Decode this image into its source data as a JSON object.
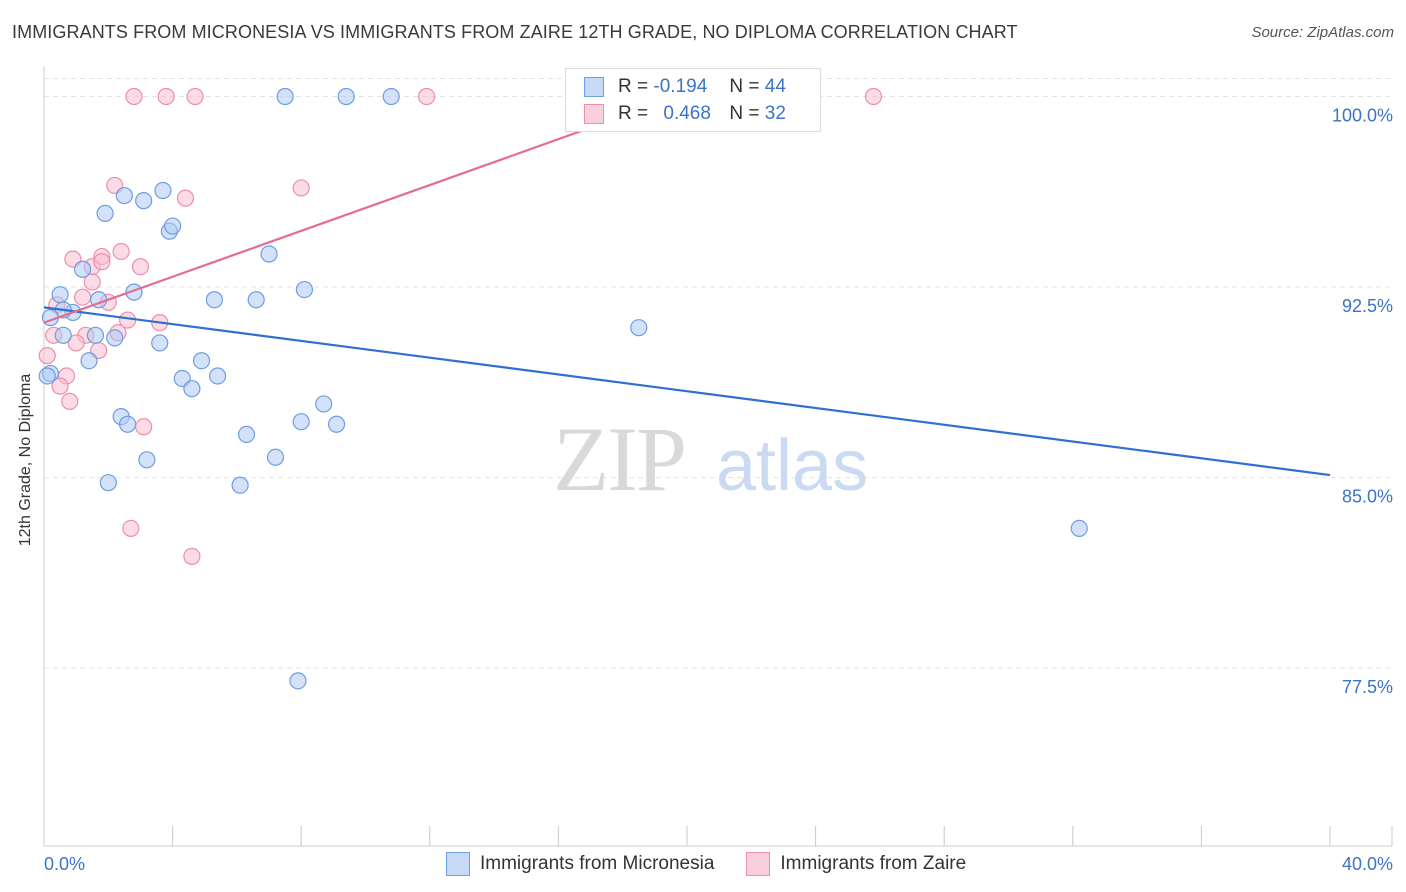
{
  "title": "IMMIGRANTS FROM MICRONESIA VS IMMIGRANTS FROM ZAIRE 12TH GRADE, NO DIPLOMA CORRELATION CHART",
  "source": "Source: ZipAtlas.com",
  "watermark": {
    "zip": "ZIP",
    "atlas": "atlas"
  },
  "colors": {
    "blue_fill": "#aecbf2",
    "blue_stroke": "#6f9de0",
    "blue_line": "#2f6fd0",
    "pink_fill": "#f7bdd0",
    "pink_stroke": "#ec8fac",
    "pink_line": "#e46b95",
    "axis_text": "#3b74c7",
    "grid": "#e3e3e3"
  },
  "legend": {
    "blue": {
      "r_label": "R =",
      "r_value": "-0.194",
      "n_label": "N =",
      "n_value": "44"
    },
    "pink": {
      "r_label": "R =",
      "r_value": "0.468",
      "n_label": "N =",
      "n_value": "32"
    }
  },
  "chart_data": {
    "type": "scatter",
    "title": "IMMIGRANTS FROM MICRONESIA VS IMMIGRANTS FROM ZAIRE 12TH GRADE, NO DIPLOMA CORRELATION CHART",
    "xlabel": "",
    "ylabel": "12th Grade, No Diploma",
    "xlim": [
      0,
      40
    ],
    "ylim": [
      70.5,
      101.2
    ],
    "x_tick_labels": [
      "0.0%",
      "40.0%"
    ],
    "y_ticks": [
      77.5,
      85.0,
      92.5,
      100.0
    ],
    "y_tick_labels": [
      "77.5%",
      "85.0%",
      "92.5%",
      "100.0%"
    ],
    "series": [
      {
        "name": "Immigrants from Micronesia",
        "color": "blue",
        "points": [
          [
            7.5,
            100.0
          ],
          [
            9.4,
            100.0
          ],
          [
            10.8,
            100.0
          ],
          [
            2.5,
            96.1
          ],
          [
            3.1,
            95.9
          ],
          [
            3.7,
            96.3
          ],
          [
            1.9,
            95.4
          ],
          [
            3.9,
            94.7
          ],
          [
            4.0,
            94.9
          ],
          [
            7.0,
            93.8
          ],
          [
            1.2,
            93.2
          ],
          [
            0.5,
            92.2
          ],
          [
            2.8,
            92.3
          ],
          [
            5.3,
            92.0
          ],
          [
            6.6,
            92.0
          ],
          [
            8.1,
            92.4
          ],
          [
            0.9,
            91.5
          ],
          [
            1.7,
            92.0
          ],
          [
            0.6,
            91.6
          ],
          [
            0.2,
            91.3
          ],
          [
            0.6,
            90.6
          ],
          [
            1.6,
            90.6
          ],
          [
            2.2,
            90.5
          ],
          [
            3.6,
            90.3
          ],
          [
            1.4,
            89.6
          ],
          [
            4.9,
            89.6
          ],
          [
            0.2,
            89.1
          ],
          [
            4.3,
            88.9
          ],
          [
            5.4,
            89.0
          ],
          [
            4.6,
            88.5
          ],
          [
            8.7,
            87.9
          ],
          [
            2.4,
            87.4
          ],
          [
            2.6,
            87.1
          ],
          [
            8.0,
            87.2
          ],
          [
            9.1,
            87.1
          ],
          [
            6.3,
            86.7
          ],
          [
            3.2,
            85.7
          ],
          [
            7.2,
            85.8
          ],
          [
            2.0,
            84.8
          ],
          [
            6.1,
            84.7
          ],
          [
            18.5,
            90.9
          ],
          [
            32.2,
            83.0
          ],
          [
            7.9,
            77.0
          ],
          [
            0.1,
            89.0
          ]
        ]
      },
      {
        "name": "Immigrants from Zaire",
        "color": "pink",
        "points": [
          [
            2.8,
            100.0
          ],
          [
            3.8,
            100.0
          ],
          [
            4.7,
            100.0
          ],
          [
            11.9,
            100.0
          ],
          [
            25.8,
            100.0
          ],
          [
            2.2,
            96.5
          ],
          [
            4.4,
            96.0
          ],
          [
            8.0,
            96.4
          ],
          [
            2.4,
            93.9
          ],
          [
            0.9,
            93.6
          ],
          [
            1.5,
            93.3
          ],
          [
            1.8,
            93.7
          ],
          [
            1.8,
            93.5
          ],
          [
            3.0,
            93.3
          ],
          [
            1.5,
            92.7
          ],
          [
            1.2,
            92.1
          ],
          [
            2.0,
            91.9
          ],
          [
            0.4,
            91.8
          ],
          [
            2.6,
            91.2
          ],
          [
            3.6,
            91.1
          ],
          [
            0.3,
            90.6
          ],
          [
            1.3,
            90.6
          ],
          [
            2.3,
            90.7
          ],
          [
            1.0,
            90.3
          ],
          [
            1.7,
            90.0
          ],
          [
            0.1,
            89.8
          ],
          [
            0.7,
            89.0
          ],
          [
            0.5,
            88.6
          ],
          [
            0.8,
            88.0
          ],
          [
            3.1,
            87.0
          ],
          [
            2.7,
            83.0
          ],
          [
            4.6,
            81.9
          ]
        ]
      }
    ],
    "trend_lines": [
      {
        "series": "Immigrants from Micronesia",
        "x": [
          0.0,
          40.0
        ],
        "y": [
          91.7,
          85.1
        ]
      },
      {
        "series": "Immigrants from Zaire",
        "x": [
          0.0,
          19.5
        ],
        "y": [
          91.1,
          99.9
        ]
      }
    ],
    "legend": [
      "Immigrants from Micronesia",
      "Immigrants from Zaire"
    ]
  }
}
